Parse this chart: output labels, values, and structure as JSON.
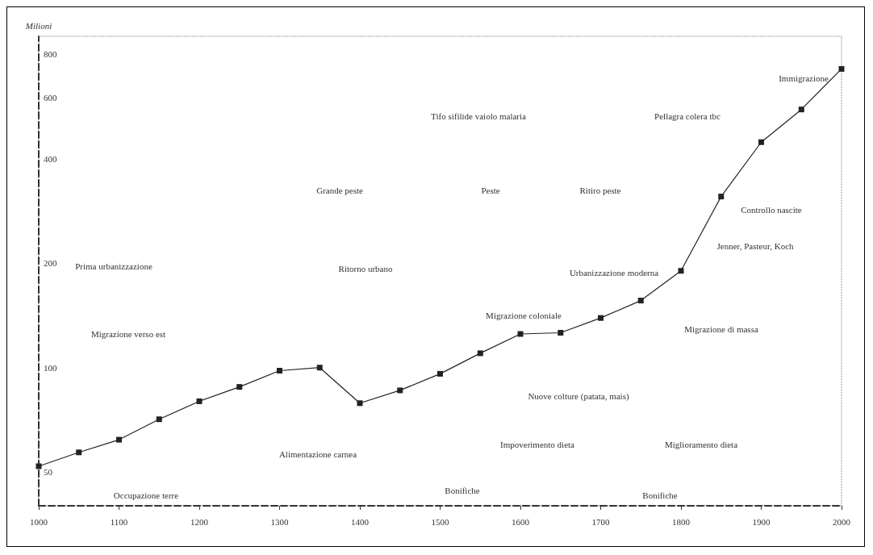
{
  "chart_data": {
    "type": "line",
    "ylabel": "Milioni",
    "x": [
      1000,
      1050,
      1100,
      1150,
      1200,
      1250,
      1300,
      1350,
      1400,
      1450,
      1500,
      1550,
      1600,
      1650,
      1700,
      1750,
      1800,
      1850,
      1900,
      1950,
      2000
    ],
    "values": [
      52,
      57,
      62,
      71,
      80,
      88,
      98,
      100,
      79,
      86,
      96,
      110,
      125,
      126,
      139,
      156,
      190,
      311,
      446,
      554,
      725
    ],
    "color": "#222222",
    "marker": "square",
    "line_style": "solid",
    "grid": false,
    "log": "y",
    "xlim": [
      1000,
      2000
    ],
    "xticks": [
      1000,
      1100,
      1200,
      1300,
      1400,
      1500,
      1600,
      1700,
      1800,
      1900,
      2000
    ],
    "ylim": [
      40,
      900
    ],
    "yticks": [
      50,
      100,
      200,
      400,
      600,
      800
    ],
    "annotations": [
      "Prima urbanizzazione",
      "Migrazione verso est",
      "Occupazione terre",
      "Alimentazione carnea",
      "Grande peste",
      "Ritorno urbano",
      "Tifo sifilide vaiolo malaria",
      "Peste",
      "Ritiro peste",
      "Pellagra colera tbc",
      "Migrazione coloniale",
      "Nuove colture (patata, mais)",
      "Impoverimento dieta",
      "Bonifiche",
      "Bonifiche",
      "Miglioramento dieta",
      "Migrazione di massa",
      "Urbanizzazione moderna",
      "Jenner, Pasteur, Koch",
      "Controllo nascite",
      "Immigrazione"
    ]
  }
}
